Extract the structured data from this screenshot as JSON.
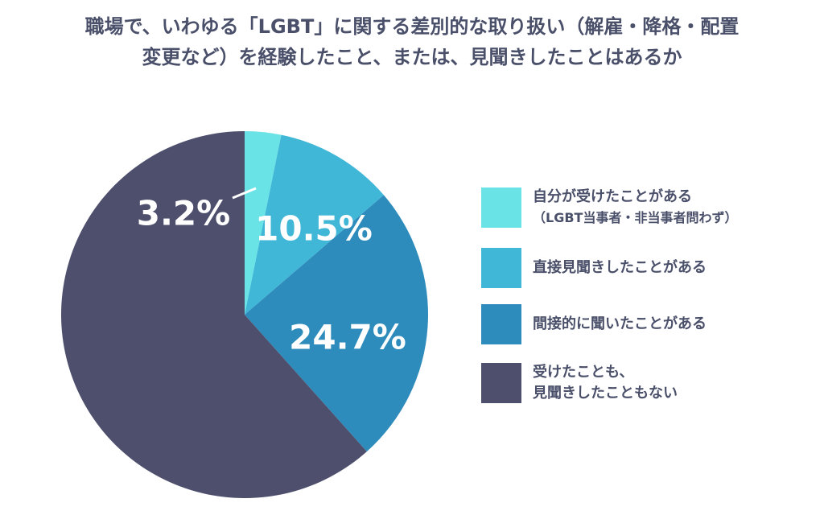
{
  "chart_data": {
    "type": "pie",
    "title_lines": [
      "職場で、いわゆる「LGBT」に関する差別的な取り扱い（解雇・降格・配置",
      "変更など）を経験したこと、または、見聞きしたことはあるか"
    ],
    "start": "12 o'clock",
    "direction": "clockwise",
    "slices": [
      {
        "label_lines": [
          "自分が受けたことがある",
          "（LGBT当事者・非当事者問わず）"
        ],
        "value": 3.2,
        "display": "3.2%",
        "color": "#6ae3e6"
      },
      {
        "label_lines": [
          "直接見聞きしたことがある"
        ],
        "value": 10.5,
        "display": "10.5%",
        "color": "#41b7d8"
      },
      {
        "label_lines": [
          "間接的に聞いたことがある"
        ],
        "value": 24.7,
        "display": "24.7%",
        "color": "#2e8cbc"
      },
      {
        "label_lines": [
          "受けたことも、",
          "見聞きしたこともない"
        ],
        "value": 61.6,
        "display": "",
        "color": "#4d4f6c"
      }
    ],
    "legend_position": "right",
    "label_color": "#ffffff",
    "leader_line_on_smallest": true
  }
}
